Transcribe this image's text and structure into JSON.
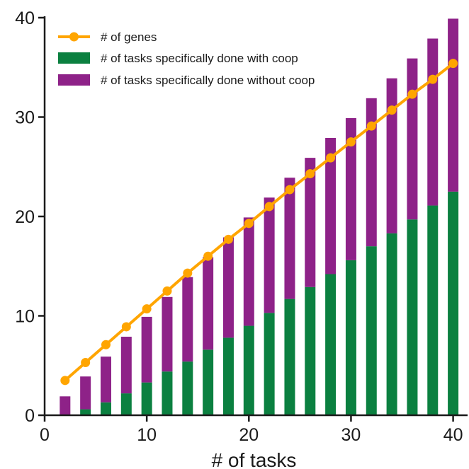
{
  "chart_data": {
    "type": "bar",
    "xlabel": "# of tasks",
    "ylabel": "",
    "xlim": [
      0,
      41
    ],
    "ylim": [
      0,
      40
    ],
    "xticks": [
      0,
      10,
      20,
      30,
      40
    ],
    "yticks": [
      0,
      10,
      20,
      30,
      40
    ],
    "x": [
      2,
      4,
      6,
      8,
      10,
      12,
      14,
      16,
      18,
      20,
      22,
      24,
      26,
      28,
      30,
      32,
      34,
      36,
      38,
      40
    ],
    "legend_position": "top-left",
    "grid": false,
    "series": [
      {
        "name": "# of genes",
        "kind": "line",
        "color": "#FFA500",
        "values": [
          3.5,
          5.3,
          7.1,
          8.9,
          10.7,
          12.5,
          14.3,
          16.0,
          17.7,
          19.3,
          21.0,
          22.7,
          24.3,
          25.9,
          27.5,
          29.1,
          30.7,
          32.3,
          33.8,
          35.4
        ]
      },
      {
        "name": "# of tasks specifically done with coop",
        "kind": "bar",
        "stack": "base",
        "color": "#0B8040",
        "values": [
          0.0,
          0.6,
          1.3,
          2.2,
          3.3,
          4.4,
          5.4,
          6.6,
          7.8,
          9.0,
          10.3,
          11.7,
          12.9,
          14.2,
          15.6,
          17.0,
          18.3,
          19.7,
          21.1,
          22.5
        ]
      },
      {
        "name": "# of tasks specifically done without coop",
        "kind": "bar",
        "stack": "top",
        "color": "#8E2288",
        "values": [
          1.9,
          3.3,
          4.6,
          5.7,
          6.6,
          7.5,
          8.5,
          9.3,
          10.1,
          10.9,
          11.6,
          12.2,
          13.0,
          13.7,
          14.3,
          14.9,
          15.6,
          16.2,
          16.8,
          17.4
        ]
      }
    ]
  }
}
